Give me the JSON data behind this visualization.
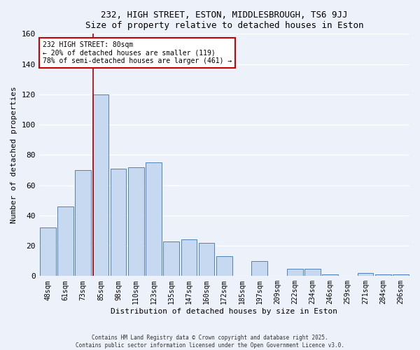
{
  "title1": "232, HIGH STREET, ESTON, MIDDLESBROUGH, TS6 9JJ",
  "title2": "Size of property relative to detached houses in Eston",
  "xlabel": "Distribution of detached houses by size in Eston",
  "ylabel": "Number of detached properties",
  "bar_labels": [
    "48sqm",
    "61sqm",
    "73sqm",
    "85sqm",
    "98sqm",
    "110sqm",
    "123sqm",
    "135sqm",
    "147sqm",
    "160sqm",
    "172sqm",
    "185sqm",
    "197sqm",
    "209sqm",
    "222sqm",
    "234sqm",
    "246sqm",
    "259sqm",
    "271sqm",
    "284sqm",
    "296sqm"
  ],
  "bar_values": [
    32,
    46,
    70,
    120,
    71,
    72,
    75,
    23,
    24,
    22,
    13,
    0,
    10,
    0,
    5,
    5,
    1,
    0,
    2,
    1,
    1
  ],
  "bar_color": "#c6d9f0",
  "bar_edge_color": "#4f81bd",
  "highlight_index": 3,
  "highlight_line_color": "#aa0000",
  "annotation_text": "232 HIGH STREET: 80sqm\n← 20% of detached houses are smaller (119)\n78% of semi-detached houses are larger (461) →",
  "annotation_box_facecolor": "#ffffff",
  "annotation_border_color": "#cc0000",
  "ylim": [
    0,
    160
  ],
  "yticks": [
    0,
    20,
    40,
    60,
    80,
    100,
    120,
    140,
    160
  ],
  "footer1": "Contains HM Land Registry data © Crown copyright and database right 2025.",
  "footer2": "Contains public sector information licensed under the Open Government Licence v3.0.",
  "background_color": "#edf1f9",
  "plot_bg_color": "#edf1f9",
  "grid_color": "#ffffff"
}
